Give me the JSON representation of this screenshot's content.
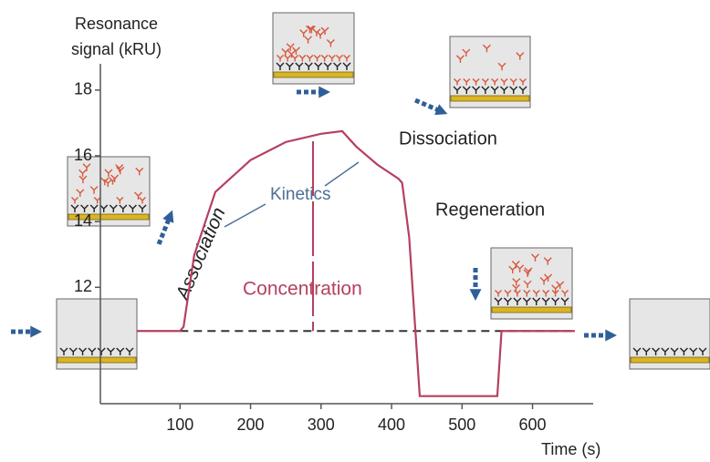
{
  "chart_data": {
    "type": "line",
    "ylabel": [
      "Resonance",
      "signal  (kRU)"
    ],
    "xlabel": "Time  (s)",
    "annotations": {
      "association": "Association",
      "kinetics": "Kinetics",
      "concentration": "Concentration",
      "dissociation": "Dissociation",
      "regeneration": "Regeneration"
    },
    "x": [
      39,
      100,
      105,
      120,
      150,
      200,
      250,
      300,
      330,
      350,
      380,
      410,
      415,
      425,
      440,
      453,
      550,
      556,
      660
    ],
    "values": [
      10.67,
      10.67,
      10.8,
      12.97,
      14.9,
      15.87,
      16.42,
      16.67,
      16.75,
      16.28,
      15.73,
      15.3,
      15.18,
      13.52,
      8.69,
      8.69,
      8.69,
      10.67,
      10.67
    ],
    "color": "#b5405f",
    "baseline": 10.67,
    "xlim": [
      -13,
      686
    ],
    "ylim": [
      8.46,
      18.8
    ],
    "xticks": [
      100,
      200,
      300,
      400,
      500,
      600
    ],
    "yticks": [
      12,
      14,
      16,
      18
    ]
  }
}
